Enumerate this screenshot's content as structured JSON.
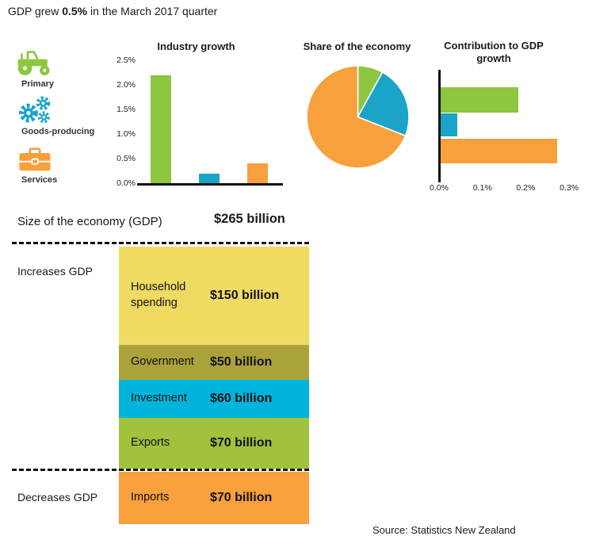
{
  "title": {
    "pre": "GDP grew ",
    "bold": "0.5%",
    "post": " in the March 2017 quarter"
  },
  "legend": {
    "items": [
      {
        "label": "Primary",
        "icon": "tractor",
        "color": "#8DC63F"
      },
      {
        "label": "Goods-producing",
        "icon": "gears",
        "color": "#1AA5C8"
      },
      {
        "label": "Services",
        "icon": "briefcase",
        "color": "#F7A03C"
      }
    ]
  },
  "chart_data": [
    {
      "type": "bar",
      "title": "Industry growth",
      "categories": [
        "Primary",
        "Goods-producing",
        "Services"
      ],
      "values": [
        2.2,
        0.2,
        0.4
      ],
      "unit": "%",
      "ylim": [
        0,
        2.5
      ],
      "yticks": [
        "0.0%",
        "0.5%",
        "1.0%",
        "1.5%",
        "2.0%",
        "2.5%"
      ],
      "colors": [
        "#8DC63F",
        "#1AA5C8",
        "#F7A03C"
      ],
      "grid": false,
      "legend_position": "none"
    },
    {
      "type": "pie",
      "title": "Share of the economy",
      "categories": [
        "Primary",
        "Goods-producing",
        "Services"
      ],
      "values": [
        8,
        23,
        69
      ],
      "unit": "% share (approx.)",
      "colors": [
        "#8DC63F",
        "#1AA5C8",
        "#F7A03C"
      ],
      "legend_position": "none"
    },
    {
      "type": "bar-horizontal",
      "title": "Contribution to GDP growth",
      "categories": [
        "Primary",
        "Goods-producing",
        "Services"
      ],
      "values": [
        0.18,
        0.04,
        0.27
      ],
      "unit": "%",
      "xlim": [
        0,
        0.3
      ],
      "xticks": [
        "0.0%",
        "0.1%",
        "0.2%",
        "0.3%"
      ],
      "colors": [
        "#8DC63F",
        "#1AA5C8",
        "#F7A03C"
      ],
      "grid": false,
      "legend_position": "none"
    }
  ],
  "economy": {
    "label": "Size of the economy (GDP)",
    "value": "$265 billion"
  },
  "flows": {
    "increases_label": "Increases GDP",
    "decreases_label": "Decreases GDP",
    "rows": [
      {
        "label": "Household spending",
        "value": "$150 billion",
        "color": "#EFDB62",
        "group": "increase"
      },
      {
        "label": "Government",
        "value": "$50 billion",
        "color": "#ABA23C",
        "group": "increase"
      },
      {
        "label": "Investment",
        "value": "$60 billion",
        "color": "#00B4DC",
        "group": "increase"
      },
      {
        "label": "Exports",
        "value": "$70 billion",
        "color": "#A0C23C",
        "group": "increase"
      },
      {
        "label": "Imports",
        "value": "$70 billion",
        "color": "#F7A03C",
        "group": "decrease"
      }
    ]
  },
  "source": "Source: Statistics New Zealand"
}
